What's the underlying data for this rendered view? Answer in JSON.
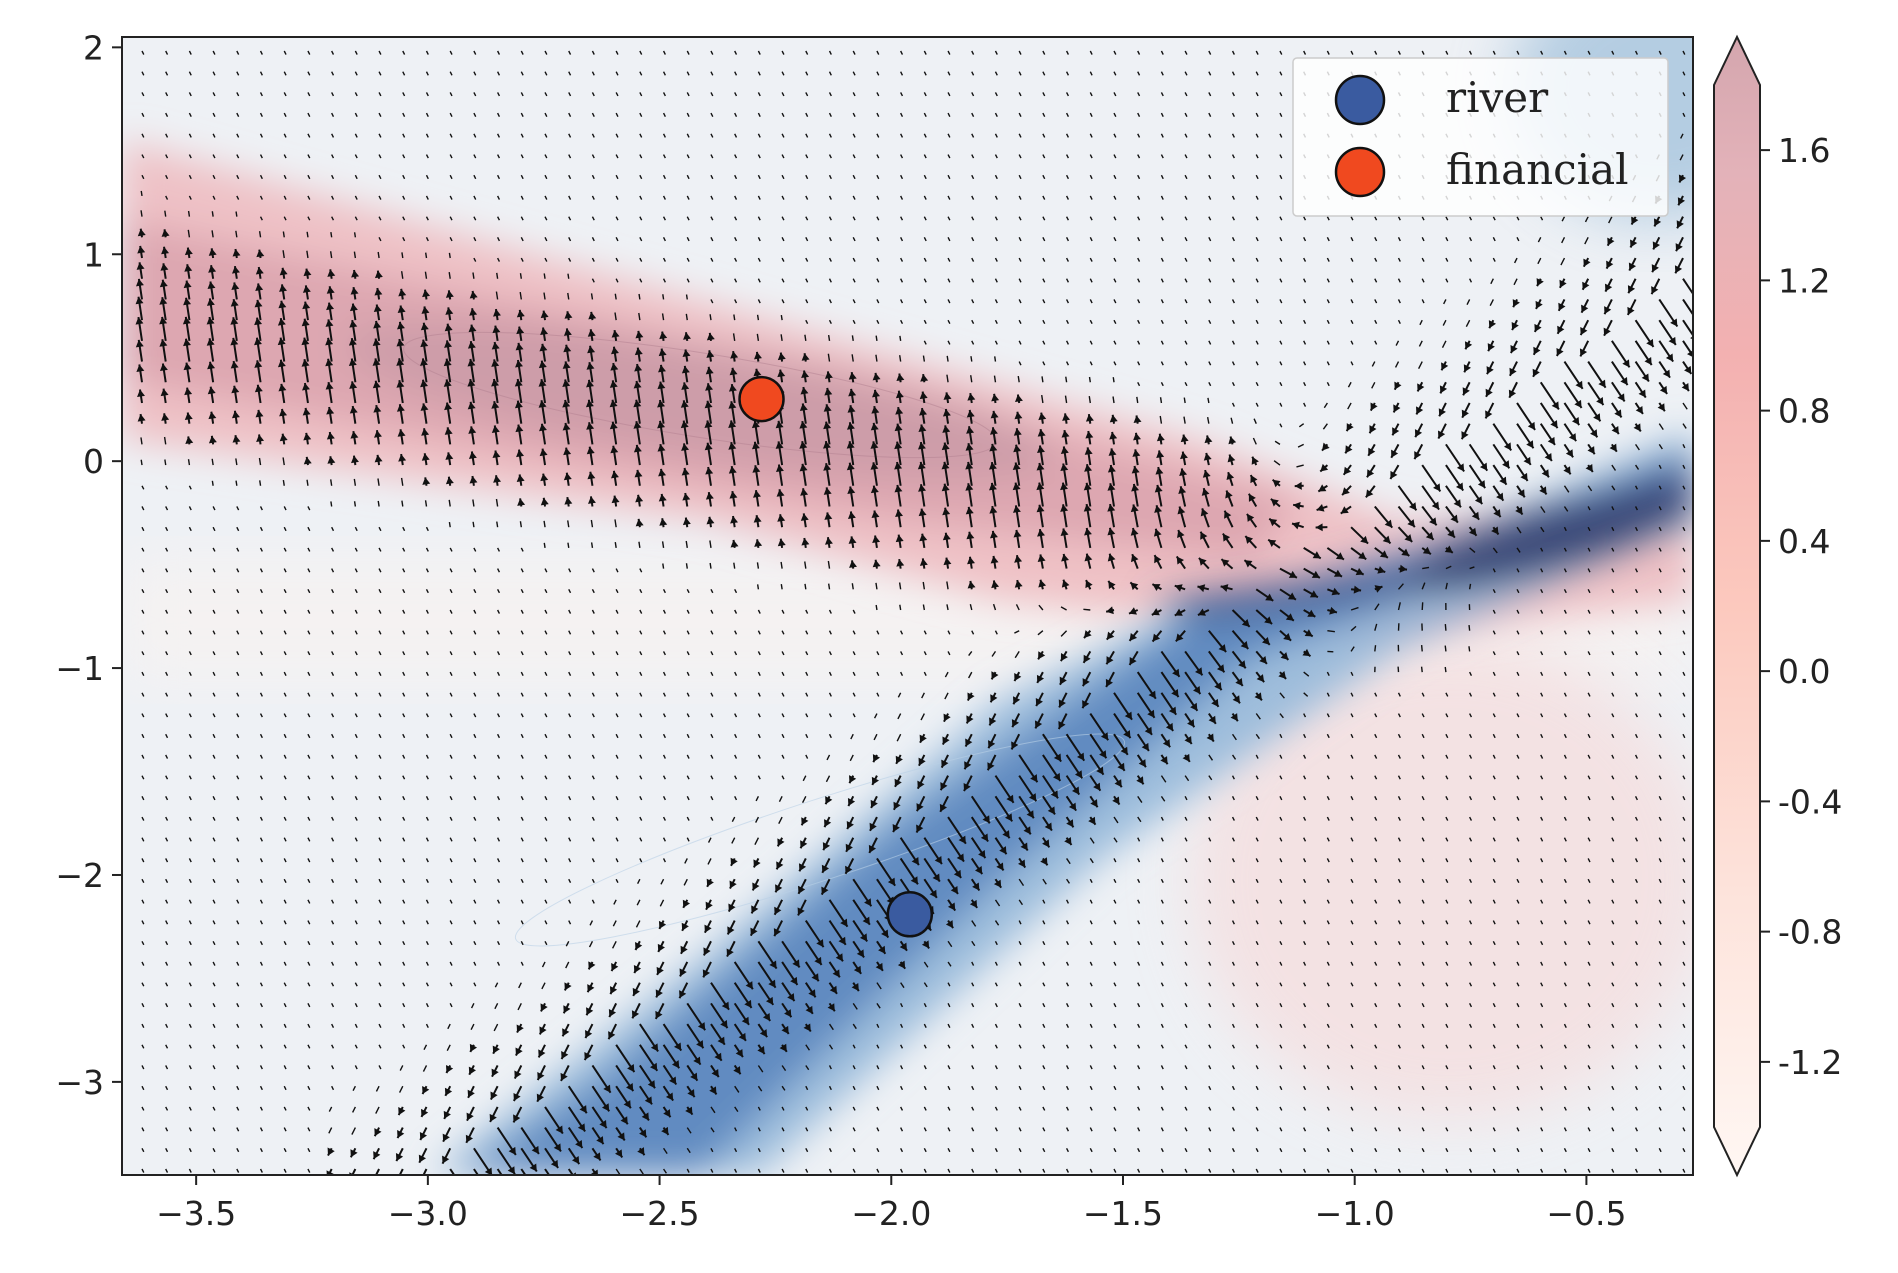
{
  "chart_data": {
    "type": "contour-quiver",
    "xlim": [
      -3.66,
      -0.27
    ],
    "ylim": [
      -3.45,
      2.05
    ],
    "x_ticks": [
      -3.5,
      -3.0,
      -2.5,
      -2.0,
      -1.5,
      -1.0,
      -0.5
    ],
    "x_tick_labels": [
      "−3.5",
      "−3.0",
      "−2.5",
      "−2.0",
      "−1.5",
      "−1.0",
      "−0.5"
    ],
    "y_ticks": [
      2,
      1,
      0,
      -1,
      -2,
      -3
    ],
    "y_tick_labels": [
      "2",
      "1",
      "0",
      "−1",
      "−2",
      "−3"
    ],
    "colorbar": {
      "min": -1.4,
      "max": 1.8,
      "extend": "both",
      "ticks": [
        1.6,
        1.2,
        0.8,
        0.4,
        0.0,
        -0.4,
        -0.8,
        -1.2
      ],
      "tick_labels": [
        "1.6",
        "1.2",
        "0.8",
        "0.4",
        "0.0",
        "-0.4",
        "-0.8",
        "-1.2"
      ],
      "colors": [
        "#fff7f3",
        "#fde0d9",
        "#fcc5bb",
        "#f4a7a7",
        "#e8b7be",
        "#d8a9b2",
        "#cfa4ad"
      ]
    },
    "points": [
      {
        "name": "river",
        "x": -1.96,
        "y": -2.19,
        "color": "#3a5ba0"
      },
      {
        "name": "financial",
        "x": -2.28,
        "y": 0.3,
        "color": "#f0491f"
      }
    ],
    "legend": {
      "location": "upper right",
      "entries": [
        {
          "label": "river",
          "color": "#3a5ba0"
        },
        {
          "label": "financial",
          "color": "#f0491f"
        }
      ]
    },
    "grid": false
  }
}
